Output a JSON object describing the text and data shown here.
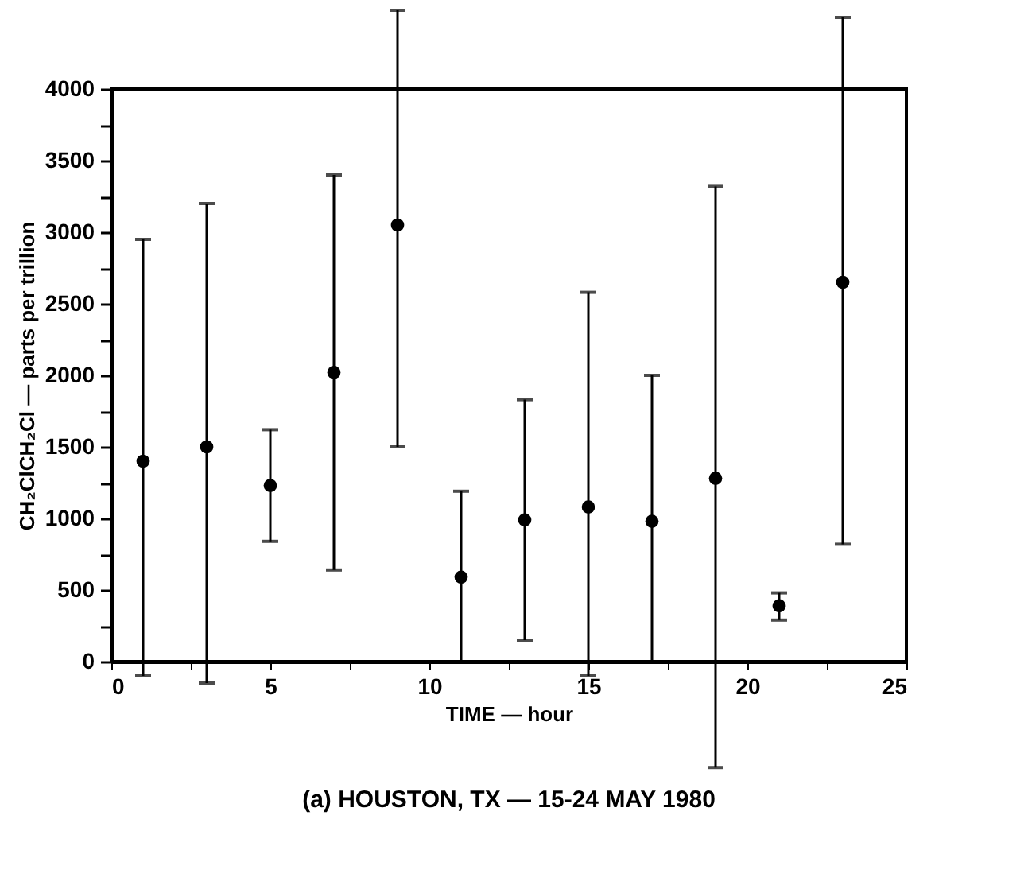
{
  "chart_data": {
    "type": "scatter",
    "title": "(a) HOUSTON, TX — 15-24 MAY 1980",
    "xlabel": "TIME — hour",
    "ylabel": "CH₂ClCH₂Cl — parts per trillion",
    "x": [
      1,
      3,
      5,
      7,
      9,
      11,
      13,
      15,
      17,
      19,
      21,
      23
    ],
    "values": [
      1400,
      1500,
      1230,
      2020,
      3050,
      590,
      990,
      1080,
      980,
      1280,
      390,
      2650
    ],
    "errors": [
      [
        -100,
        2950
      ],
      [
        -150,
        3200
      ],
      [
        840,
        1620
      ],
      [
        640,
        3400
      ],
      [
        1500,
        4550
      ],
      [
        0,
        1190
      ],
      [
        150,
        1830
      ],
      [
        -100,
        2580
      ],
      [
        0,
        2000
      ],
      [
        -740,
        3320
      ],
      [
        290,
        480
      ],
      [
        820,
        4500
      ]
    ],
    "color": "#000000",
    "marker": "circle",
    "grid": false,
    "legend": false,
    "xlim": [
      0,
      25
    ],
    "ylim": [
      0,
      4000
    ],
    "xticks": [
      0,
      {
        "value": 2.5,
        "label": null
      },
      5,
      {
        "value": 7.5,
        "label": null
      },
      10,
      {
        "value": 12.5,
        "label": null
      },
      15,
      {
        "value": 17.5,
        "label": null
      },
      20,
      {
        "value": 22.5,
        "label": null
      },
      25
    ],
    "yticks": [
      0,
      {
        "value": 250,
        "label": null
      },
      500,
      {
        "value": 750,
        "label": null
      },
      1000,
      {
        "value": 1250,
        "label": null
      },
      1500,
      {
        "value": 1750,
        "label": null
      },
      2000,
      {
        "value": 2250,
        "label": null
      },
      2500,
      {
        "value": 2750,
        "label": null
      },
      3000,
      {
        "value": 3250,
        "label": null
      },
      3500,
      {
        "value": 3750,
        "label": null
      },
      4000
    ]
  }
}
